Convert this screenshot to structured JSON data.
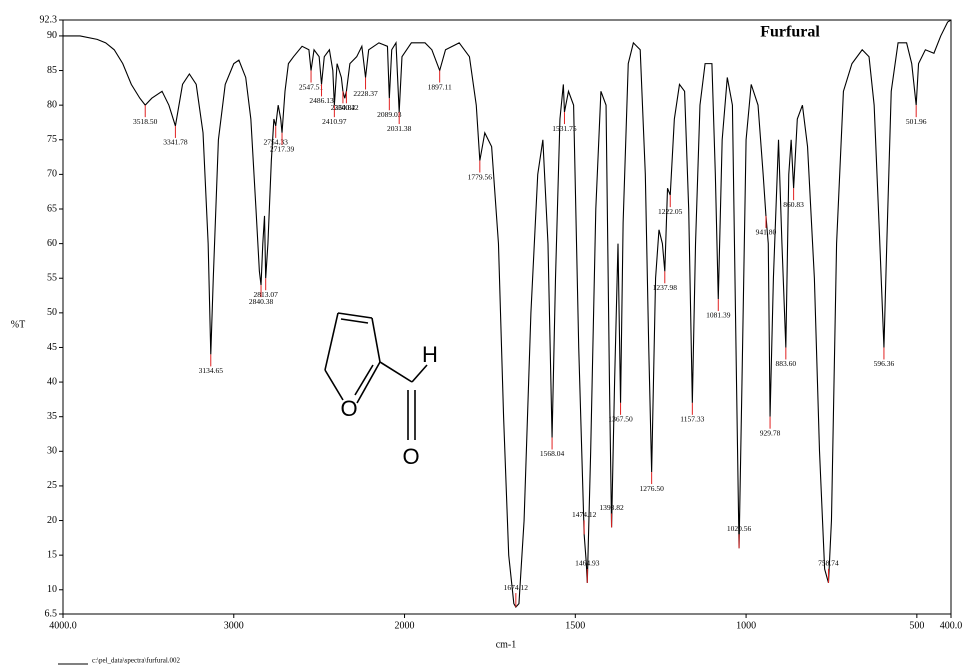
{
  "chart_data": {
    "type": "line",
    "title": "Furfural",
    "x_label": "cm-1",
    "y_label": "%T",
    "structure_atoms": [
      "O",
      "H",
      "O"
    ],
    "xlim": [
      4000,
      400
    ],
    "x_axis_expansion": {
      "below": 2000,
      "factor": 2
    },
    "xticks": [
      {
        "value": 4000,
        "label": "4000.0"
      },
      3000,
      2000,
      1500,
      1000,
      500,
      {
        "value": 400,
        "label": "400.0"
      }
    ],
    "ylim": [
      6.5,
      92.3
    ],
    "yticks": [
      6.5,
      10,
      15,
      20,
      25,
      30,
      35,
      40,
      45,
      50,
      55,
      60,
      65,
      70,
      75,
      80,
      85,
      90,
      92.3
    ],
    "peak_color": "#e02020",
    "series": [
      {
        "name": "c:\\pel_data\\spectra\\furfural.002",
        "color": "#000000",
        "x": [
          4000,
          3900,
          3800,
          3750,
          3700,
          3650,
          3600,
          3550,
          3518.5,
          3480,
          3420,
          3380,
          3341.78,
          3300,
          3260,
          3220,
          3180,
          3150,
          3134.65,
          3120,
          3090,
          3050,
          3000,
          2970,
          2930,
          2900,
          2870,
          2850,
          2840.38,
          2830,
          2820,
          2813.07,
          2800,
          2780,
          2765,
          2754.33,
          2740,
          2725,
          2717.39,
          2700,
          2680,
          2650,
          2600,
          2560,
          2547.51,
          2530,
          2500,
          2486.13,
          2470,
          2440,
          2420,
          2410.97,
          2395,
          2370,
          2360.82,
          2350,
          2340.42,
          2320,
          2280,
          2250,
          2228.37,
          2210,
          2150,
          2100,
          2089.03,
          2075,
          2050,
          2031.38,
          2015,
          1980,
          1940,
          1920,
          1897.11,
          1880,
          1840,
          1810,
          1790,
          1779.56,
          1765,
          1745,
          1725,
          1710,
          1695,
          1680,
          1674.12,
          1665,
          1650,
          1630,
          1610,
          1595,
          1580,
          1568.04,
          1558,
          1545,
          1535,
          1531.75,
          1520,
          1505,
          1490,
          1474.12,
          1468,
          1464.93,
          1455,
          1440,
          1425,
          1410,
          1400,
          1393.82,
          1385,
          1375,
          1367.5,
          1360,
          1345,
          1330,
          1310,
          1295,
          1285,
          1276.5,
          1265,
          1255,
          1245,
          1237.98,
          1230,
          1222.05,
          1210,
          1195,
          1180,
          1168,
          1157.33,
          1148,
          1135,
          1120,
          1100,
          1090,
          1081.39,
          1070,
          1055,
          1040,
          1028,
          1020.56,
          1012,
          1000,
          985,
          965,
          950,
          941.8,
          935,
          929.78,
          920,
          905,
          895,
          883.6,
          875,
          868,
          860.83,
          850,
          835,
          820,
          800,
          785,
          770,
          758.74,
          750,
          735,
          715,
          690,
          660,
          640,
          625,
          610,
          596.36,
          588,
          575,
          555,
          530,
          515,
          501.96,
          495,
          475,
          450,
          430,
          410,
          400
        ],
        "values": [
          90,
          90,
          89.5,
          89,
          88,
          86,
          83,
          81,
          80,
          81,
          82,
          80,
          77,
          83,
          84.5,
          83,
          76,
          60,
          44,
          55,
          75,
          83,
          86,
          86.5,
          84,
          78,
          65,
          56,
          54,
          60,
          64,
          55,
          60,
          72,
          78,
          77,
          80,
          78,
          76,
          82,
          86,
          87,
          88.5,
          88,
          85,
          88,
          87,
          83,
          87,
          88,
          85,
          80,
          86,
          84,
          82,
          81,
          82,
          86,
          87,
          88.5,
          84,
          88,
          89,
          88.5,
          81,
          88,
          89,
          79,
          87,
          89,
          89,
          88,
          85,
          88,
          89,
          87,
          80,
          72,
          76,
          74,
          60,
          35,
          15,
          8,
          7.5,
          8,
          20,
          50,
          70,
          75,
          60,
          32,
          55,
          78,
          83,
          79,
          82,
          80,
          45,
          18,
          14,
          11,
          30,
          65,
          82,
          80,
          40,
          19,
          40,
          60,
          37,
          63,
          86,
          89,
          88,
          70,
          45,
          27,
          55,
          62,
          60,
          56,
          68,
          67,
          78,
          83,
          82,
          65,
          37,
          60,
          80,
          86,
          86,
          70,
          52,
          75,
          84,
          80,
          40,
          16,
          40,
          75,
          83,
          80,
          70,
          64,
          60,
          35,
          55,
          75,
          60,
          45,
          70,
          75,
          68,
          78,
          80,
          74,
          55,
          30,
          13,
          11,
          20,
          60,
          82,
          86,
          88,
          87,
          80,
          62,
          45,
          60,
          82,
          89,
          89,
          86,
          80,
          86,
          88,
          87.5,
          90,
          92,
          92.3
        ]
      }
    ],
    "peaks": [
      {
        "x": 3518.5,
        "y": 80,
        "label": "3518.50"
      },
      {
        "x": 3341.78,
        "y": 77,
        "label": "3341.78"
      },
      {
        "x": 3134.65,
        "y": 44,
        "label": "3134.65"
      },
      {
        "x": 2840.38,
        "y": 54,
        "label": "2840.38"
      },
      {
        "x": 2813.07,
        "y": 55,
        "label": "2813.07"
      },
      {
        "x": 2754.33,
        "y": 77,
        "label": "2754.33"
      },
      {
        "x": 2717.39,
        "y": 76,
        "label": "2717.39"
      },
      {
        "x": 2547.51,
        "y": 85,
        "label": "2547.51"
      },
      {
        "x": 2486.13,
        "y": 83,
        "label": "2486.13"
      },
      {
        "x": 2410.97,
        "y": 80,
        "label": "2410.97"
      },
      {
        "x": 2360.82,
        "y": 82,
        "label": "2360.82"
      },
      {
        "x": 2340.42,
        "y": 82,
        "label": "2340.42"
      },
      {
        "x": 2228.37,
        "y": 84,
        "label": "2228.37"
      },
      {
        "x": 2089.03,
        "y": 81,
        "label": "2089.03"
      },
      {
        "x": 2031.38,
        "y": 79,
        "label": "2031.38"
      },
      {
        "x": 1897.11,
        "y": 85,
        "label": "1897.11"
      },
      {
        "x": 1779.56,
        "y": 72,
        "label": "1779.56"
      },
      {
        "x": 1674.12,
        "y": 7.5,
        "label": "1674.12"
      },
      {
        "x": 1568.04,
        "y": 32,
        "label": "1568.04"
      },
      {
        "x": 1531.75,
        "y": 79,
        "label": "1531.75"
      },
      {
        "x": 1474.12,
        "y": 18,
        "label": "1474.12"
      },
      {
        "x": 1464.93,
        "y": 11,
        "label": "1464.93"
      },
      {
        "x": 1393.82,
        "y": 19,
        "label": "1393.82"
      },
      {
        "x": 1367.5,
        "y": 37,
        "label": "1367.50"
      },
      {
        "x": 1276.5,
        "y": 27,
        "label": "1276.50"
      },
      {
        "x": 1237.98,
        "y": 56,
        "label": "1237.98"
      },
      {
        "x": 1222.05,
        "y": 67,
        "label": "1222.05"
      },
      {
        "x": 1157.33,
        "y": 37,
        "label": "1157.33"
      },
      {
        "x": 1081.39,
        "y": 52,
        "label": "1081.39"
      },
      {
        "x": 1020.56,
        "y": 16,
        "label": "1020.56"
      },
      {
        "x": 941.8,
        "y": 64,
        "label": "941.80"
      },
      {
        "x": 929.78,
        "y": 35,
        "label": "929.78"
      },
      {
        "x": 883.6,
        "y": 45,
        "label": "883.60"
      },
      {
        "x": 860.83,
        "y": 68,
        "label": "860.83"
      },
      {
        "x": 758.74,
        "y": 11,
        "label": "758.74"
      },
      {
        "x": 596.36,
        "y": 45,
        "label": "596.36"
      },
      {
        "x": 501.96,
        "y": 80,
        "label": "501.96"
      }
    ]
  }
}
